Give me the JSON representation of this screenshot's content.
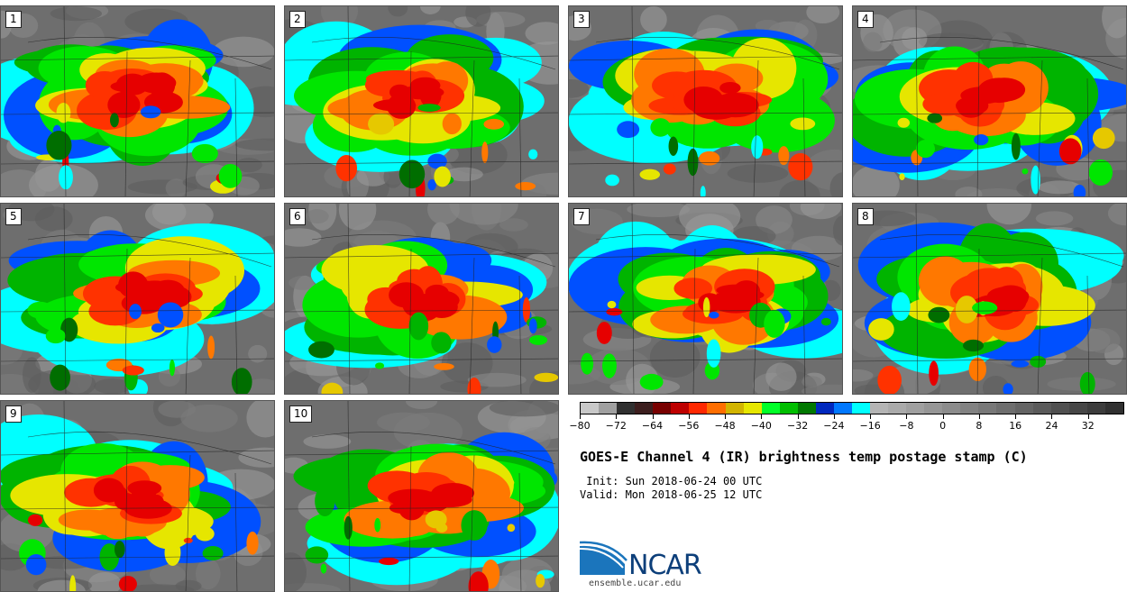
{
  "stamps": [
    {
      "label": "1"
    },
    {
      "label": "2"
    },
    {
      "label": "3"
    },
    {
      "label": "4"
    },
    {
      "label": "5"
    },
    {
      "label": "6"
    },
    {
      "label": "7"
    },
    {
      "label": "8"
    },
    {
      "label": "9"
    },
    {
      "label": "10"
    }
  ],
  "colorbar": {
    "colors": [
      "#c8c8c8",
      "#a0a0a0",
      "#303030",
      "#3c1e1e",
      "#780000",
      "#be0000",
      "#ff2800",
      "#ff6e00",
      "#d2b400",
      "#e6e600",
      "#00ff28",
      "#00be00",
      "#007800",
      "#0028be",
      "#0078ff",
      "#00ffff",
      "#b4b4b4",
      "#aaaaaa",
      "#a0a0a0",
      "#969696",
      "#8c8c8c",
      "#828282",
      "#787878",
      "#6e6e6e",
      "#646464",
      "#5a5a5a",
      "#505050",
      "#464646",
      "#3c3c3c",
      "#303030"
    ],
    "ticks": [
      "−80",
      "−72",
      "−64",
      "−56",
      "−48",
      "−40",
      "−32",
      "−24",
      "−16",
      "−8",
      "0",
      "8",
      "16",
      "24",
      "32"
    ]
  },
  "title": "GOES-E Channel 4 (IR) brightness temp postage stamp (C)",
  "init": " Init: Sun 2018-06-24 00 UTC",
  "valid": "Valid: Mon 2018-06-25 12 UTC",
  "logo": {
    "name": "NCAR",
    "url": "ensemble.ucar.edu"
  }
}
